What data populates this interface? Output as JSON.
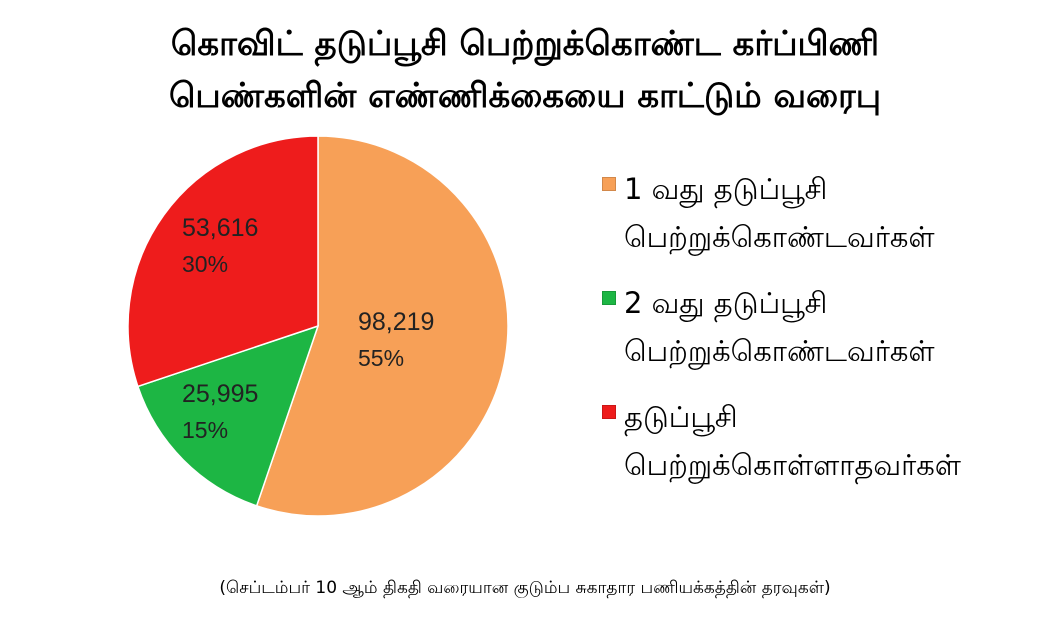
{
  "title_line1": "கொவிட் தடுப்பூசி பெற்றுக்கொண்ட கர்ப்பிணி",
  "title_line2": "பெண்களின் எண்ணிக்கையை காட்டும் வரைபு",
  "source_note": "(செப்டம்பர் 10 ஆம் திகதி வரையான குடும்ப சுகாதார பணியக்கத்தின் தரவுகள்)",
  "chart_data": {
    "type": "pie",
    "title": "கொவிட் தடுப்பூசி பெற்றுக்கொண்ட கர்ப்பிணி பெண்களின் எண்ணிக்கையை காட்டும் வரைபு",
    "legend_position": "right",
    "slices": [
      {
        "label": "1 வது தடுப்பூசி பெற்றுக்கொண்டவர்கள்",
        "value": 98219,
        "value_text": "98,219",
        "percent_text": "55%",
        "color": "#F7A057"
      },
      {
        "label": "2 வது தடுப்பூசி பெற்றுக்கொண்டவர்கள்",
        "value": 25995,
        "value_text": "25,995",
        "percent_text": "15%",
        "color": "#1DB644"
      },
      {
        "label": "தடுப்பூசி பெற்றுக்கொள்ளாதவர்கள்",
        "value": 53616,
        "value_text": "53,616",
        "percent_text": "30%",
        "color": "#EE1C1C"
      }
    ]
  },
  "legend": [
    {
      "text": "1 வது  தடுப்பூசி\nபெற்றுக்கொண்டவர்கள்",
      "color": "#F7A057"
    },
    {
      "text": "2 வது  தடுப்பூசி\nபெற்றுக்கொண்டவர்கள்",
      "color": "#1DB644"
    },
    {
      "text": " தடுப்பூசி\nபெற்றுக்கொள்ளாதவர்கள்",
      "color": "#EE1C1C"
    }
  ]
}
